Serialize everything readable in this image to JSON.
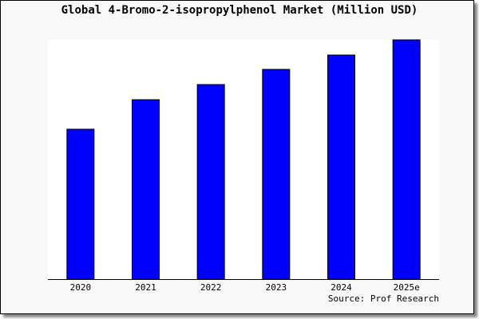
{
  "chart_data": {
    "type": "bar",
    "title": "Global 4-Bromo-2-isopropylphenol Market (Million USD)",
    "categories": [
      "2020",
      "2021",
      "2022",
      "2023",
      "2024",
      "2025e"
    ],
    "values": [
      188,
      225,
      244,
      263,
      281,
      300
    ],
    "xlabel": "",
    "ylabel": "",
    "ylim": [
      0,
      300
    ],
    "grid": false,
    "bar_color": "#0000ff",
    "source": "Source: Prof Research"
  }
}
